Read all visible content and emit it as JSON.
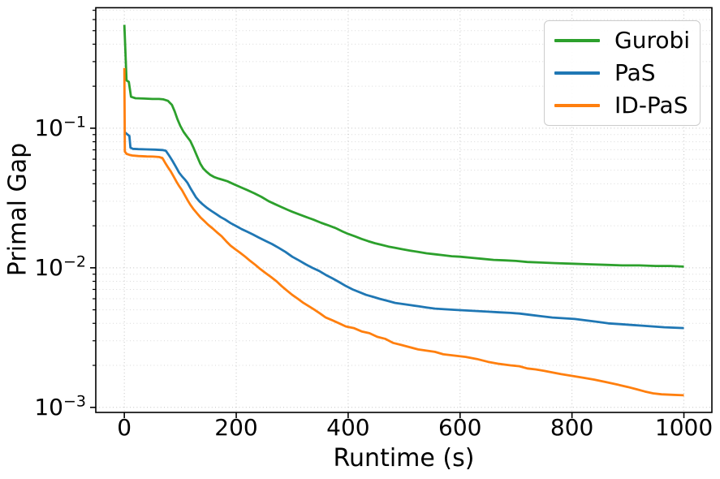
{
  "figure": {
    "background": "#ffffff"
  },
  "chart_data": {
    "type": "line",
    "title": "",
    "xlabel": "Runtime (s)",
    "ylabel": "Primal Gap",
    "x_scale": "linear",
    "y_scale": "log",
    "xlim": [
      -51,
      1050
    ],
    "ylim": [
      0.00092,
      0.73
    ],
    "x_ticks": [
      0,
      200,
      400,
      600,
      800,
      1000
    ],
    "x_tick_labels": [
      "0",
      "200",
      "400",
      "600",
      "800",
      "1000"
    ],
    "y_ticks": [
      0.1,
      0.01,
      0.001
    ],
    "y_tick_labels": [
      {
        "base": "10",
        "exp": "−1"
      },
      {
        "base": "10",
        "exp": "−2"
      },
      {
        "base": "10",
        "exp": "−3"
      }
    ],
    "grid": {
      "major": true,
      "minor_y": true,
      "style": "dotted"
    },
    "legend": {
      "position": "upper-right",
      "entries": [
        "Gurobi",
        "PaS",
        "ID-PaS"
      ]
    },
    "series": [
      {
        "name": "Gurobi",
        "color": "#2ca02c",
        "points": [
          [
            0,
            0.55
          ],
          [
            4,
            0.22
          ],
          [
            8,
            0.215
          ],
          [
            12,
            0.168
          ],
          [
            20,
            0.164
          ],
          [
            35,
            0.163
          ],
          [
            50,
            0.162
          ],
          [
            62,
            0.162
          ],
          [
            70,
            0.161
          ],
          [
            78,
            0.157
          ],
          [
            85,
            0.147
          ],
          [
            90,
            0.132
          ],
          [
            95,
            0.116
          ],
          [
            100,
            0.104
          ],
          [
            106,
            0.094
          ],
          [
            112,
            0.087
          ],
          [
            118,
            0.081
          ],
          [
            124,
            0.072
          ],
          [
            130,
            0.063
          ],
          [
            136,
            0.0555
          ],
          [
            141,
            0.0515
          ],
          [
            147,
            0.0487
          ],
          [
            153,
            0.0465
          ],
          [
            160,
            0.0448
          ],
          [
            168,
            0.0436
          ],
          [
            176,
            0.0427
          ],
          [
            184,
            0.0417
          ],
          [
            195,
            0.0398
          ],
          [
            208,
            0.0378
          ],
          [
            220,
            0.036
          ],
          [
            232,
            0.0342
          ],
          [
            245,
            0.0322
          ],
          [
            258,
            0.03
          ],
          [
            270,
            0.0285
          ],
          [
            281,
            0.0272
          ],
          [
            292,
            0.026
          ],
          [
            300,
            0.0252
          ],
          [
            312,
            0.0242
          ],
          [
            325,
            0.0231
          ],
          [
            338,
            0.0221
          ],
          [
            352,
            0.021
          ],
          [
            365,
            0.0201
          ],
          [
            377,
            0.0193
          ],
          [
            390,
            0.0182
          ],
          [
            400,
            0.0175
          ],
          [
            412,
            0.0168
          ],
          [
            424,
            0.0161
          ],
          [
            436,
            0.0155
          ],
          [
            448,
            0.015
          ],
          [
            460,
            0.0146
          ],
          [
            472,
            0.0142
          ],
          [
            484,
            0.0139
          ],
          [
            496,
            0.0136
          ],
          [
            510,
            0.0133
          ],
          [
            525,
            0.013
          ],
          [
            540,
            0.0127
          ],
          [
            555,
            0.0125
          ],
          [
            570,
            0.0123
          ],
          [
            585,
            0.0121
          ],
          [
            600,
            0.012
          ],
          [
            620,
            0.0118
          ],
          [
            640,
            0.0116
          ],
          [
            660,
            0.0114
          ],
          [
            680,
            0.0113
          ],
          [
            700,
            0.0112
          ],
          [
            720,
            0.011
          ],
          [
            745,
            0.0109
          ],
          [
            770,
            0.0108
          ],
          [
            800,
            0.0107
          ],
          [
            830,
            0.0106
          ],
          [
            860,
            0.0105
          ],
          [
            890,
            0.0104
          ],
          [
            920,
            0.0104
          ],
          [
            950,
            0.0103
          ],
          [
            975,
            0.0103
          ],
          [
            1000,
            0.0102
          ]
        ]
      },
      {
        "name": "PaS",
        "color": "#1f77b4",
        "points": [
          [
            0,
            0.094
          ],
          [
            6,
            0.09
          ],
          [
            9,
            0.088
          ],
          [
            11,
            0.0725
          ],
          [
            15,
            0.0712
          ],
          [
            25,
            0.0708
          ],
          [
            40,
            0.0705
          ],
          [
            55,
            0.0702
          ],
          [
            68,
            0.0698
          ],
          [
            74,
            0.069
          ],
          [
            80,
            0.0638
          ],
          [
            86,
            0.0585
          ],
          [
            92,
            0.053
          ],
          [
            98,
            0.048
          ],
          [
            103,
            0.0452
          ],
          [
            108,
            0.043
          ],
          [
            113,
            0.0405
          ],
          [
            118,
            0.0373
          ],
          [
            123,
            0.0345
          ],
          [
            128,
            0.032
          ],
          [
            134,
            0.03
          ],
          [
            140,
            0.0285
          ],
          [
            148,
            0.0268
          ],
          [
            156,
            0.0255
          ],
          [
            164,
            0.0243
          ],
          [
            172,
            0.0231
          ],
          [
            180,
            0.0222
          ],
          [
            190,
            0.0209
          ],
          [
            200,
            0.0199
          ],
          [
            210,
            0.0189
          ],
          [
            220,
            0.0181
          ],
          [
            230,
            0.0173
          ],
          [
            240,
            0.0165
          ],
          [
            252,
            0.0156
          ],
          [
            264,
            0.0148
          ],
          [
            276,
            0.0139
          ],
          [
            288,
            0.013
          ],
          [
            300,
            0.012
          ],
          [
            312,
            0.0113
          ],
          [
            324,
            0.0106
          ],
          [
            336,
            0.01
          ],
          [
            348,
            0.0095
          ],
          [
            360,
            0.0089
          ],
          [
            372,
            0.0084
          ],
          [
            384,
            0.0079
          ],
          [
            396,
            0.0074
          ],
          [
            408,
            0.007
          ],
          [
            420,
            0.0067
          ],
          [
            432,
            0.0064
          ],
          [
            444,
            0.0062
          ],
          [
            456,
            0.006
          ],
          [
            470,
            0.0058
          ],
          [
            484,
            0.0056
          ],
          [
            498,
            0.0055
          ],
          [
            512,
            0.0054
          ],
          [
            526,
            0.0053
          ],
          [
            540,
            0.0052
          ],
          [
            555,
            0.0051
          ],
          [
            572,
            0.00505
          ],
          [
            590,
            0.005
          ],
          [
            610,
            0.00495
          ],
          [
            630,
            0.0049
          ],
          [
            650,
            0.00485
          ],
          [
            670,
            0.0048
          ],
          [
            690,
            0.00475
          ],
          [
            706,
            0.0047
          ],
          [
            725,
            0.0046
          ],
          [
            745,
            0.0045
          ],
          [
            765,
            0.0044
          ],
          [
            785,
            0.00435
          ],
          [
            805,
            0.0043
          ],
          [
            825,
            0.0042
          ],
          [
            845,
            0.0041
          ],
          [
            865,
            0.004
          ],
          [
            885,
            0.00395
          ],
          [
            905,
            0.0039
          ],
          [
            925,
            0.00385
          ],
          [
            945,
            0.0038
          ],
          [
            965,
            0.00375
          ],
          [
            1000,
            0.0037
          ]
        ]
      },
      {
        "name": "ID-PaS",
        "color": "#ff7f0e",
        "points": [
          [
            0,
            0.27
          ],
          [
            1,
            0.068
          ],
          [
            4,
            0.0655
          ],
          [
            9,
            0.0645
          ],
          [
            14,
            0.0638
          ],
          [
            25,
            0.0632
          ],
          [
            40,
            0.0628
          ],
          [
            52,
            0.0626
          ],
          [
            62,
            0.0622
          ],
          [
            68,
            0.0612
          ],
          [
            73,
            0.0565
          ],
          [
            78,
            0.0525
          ],
          [
            83,
            0.049
          ],
          [
            88,
            0.0452
          ],
          [
            93,
            0.0415
          ],
          [
            98,
            0.0385
          ],
          [
            103,
            0.036
          ],
          [
            108,
            0.0332
          ],
          [
            113,
            0.0305
          ],
          [
            118,
            0.0283
          ],
          [
            124,
            0.0262
          ],
          [
            130,
            0.0245
          ],
          [
            136,
            0.023
          ],
          [
            143,
            0.0216
          ],
          [
            150,
            0.0203
          ],
          [
            158,
            0.0191
          ],
          [
            166,
            0.0179
          ],
          [
            174,
            0.0168
          ],
          [
            182,
            0.0155
          ],
          [
            190,
            0.0144
          ],
          [
            198,
            0.0136
          ],
          [
            207,
            0.0128
          ],
          [
            216,
            0.012
          ],
          [
            225,
            0.0112
          ],
          [
            234,
            0.0105
          ],
          [
            243,
            0.0098
          ],
          [
            252,
            0.0092
          ],
          [
            262,
            0.0086
          ],
          [
            272,
            0.008
          ],
          [
            281,
            0.0074
          ],
          [
            290,
            0.0069
          ],
          [
            300,
            0.0064
          ],
          [
            310,
            0.006
          ],
          [
            320,
            0.0056
          ],
          [
            330,
            0.0053
          ],
          [
            340,
            0.005
          ],
          [
            350,
            0.0047
          ],
          [
            360,
            0.0044
          ],
          [
            372,
            0.0042
          ],
          [
            384,
            0.004
          ],
          [
            396,
            0.0038
          ],
          [
            410,
            0.0037
          ],
          [
            424,
            0.0035
          ],
          [
            438,
            0.0034
          ],
          [
            452,
            0.0032
          ],
          [
            466,
            0.0031
          ],
          [
            480,
            0.0029
          ],
          [
            495,
            0.0028
          ],
          [
            510,
            0.0027
          ],
          [
            525,
            0.0026
          ],
          [
            540,
            0.00255
          ],
          [
            555,
            0.0025
          ],
          [
            570,
            0.0024
          ],
          [
            590,
            0.00235
          ],
          [
            610,
            0.0023
          ],
          [
            630,
            0.00222
          ],
          [
            650,
            0.00212
          ],
          [
            670,
            0.00205
          ],
          [
            690,
            0.002
          ],
          [
            706,
            0.00197
          ],
          [
            720,
            0.0019
          ],
          [
            735,
            0.00187
          ],
          [
            750,
            0.00183
          ],
          [
            765,
            0.00178
          ],
          [
            780,
            0.00173
          ],
          [
            800,
            0.00168
          ],
          [
            820,
            0.00163
          ],
          [
            840,
            0.00158
          ],
          [
            860,
            0.00152
          ],
          [
            880,
            0.00146
          ],
          [
            900,
            0.0014
          ],
          [
            915,
            0.00135
          ],
          [
            930,
            0.0013
          ],
          [
            945,
            0.00126
          ],
          [
            960,
            0.00124
          ],
          [
            980,
            0.00123
          ],
          [
            1000,
            0.00122
          ]
        ]
      }
    ],
    "style": {
      "line_width": 2.8,
      "spine_color": "#000000",
      "grid_major_color": "rgba(0,0,0,0.24)",
      "grid_minor_color": "rgba(0,0,0,0.15)",
      "text_color": "#000000"
    }
  }
}
